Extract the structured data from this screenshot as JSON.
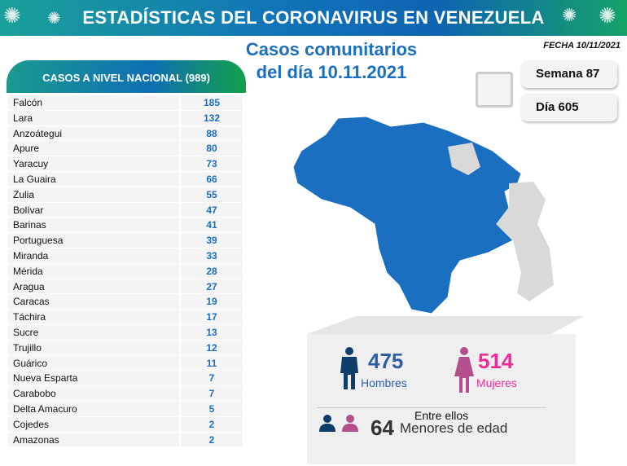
{
  "header": {
    "title": "ESTADÍSTICAS DEL CORONAVIRUS EN VENEZUELA",
    "fecha": "FECHA 10/11/2021"
  },
  "headline": {
    "line1": "Casos comunitarios",
    "line2": "del día 10.11.2021"
  },
  "table": {
    "title": "CASOS A NIVEL NACIONAL  (989)",
    "rows": [
      {
        "state": "Falcón",
        "cases": "185"
      },
      {
        "state": "Lara",
        "cases": "132"
      },
      {
        "state": "Anzoátegui",
        "cases": "88"
      },
      {
        "state": "Apure",
        "cases": "80"
      },
      {
        "state": "Yaracuy",
        "cases": "73"
      },
      {
        "state": "La Guaira",
        "cases": "66"
      },
      {
        "state": "Zulia",
        "cases": "55"
      },
      {
        "state": "Bolívar",
        "cases": "47"
      },
      {
        "state": "Barinas",
        "cases": "41"
      },
      {
        "state": "Portuguesa",
        "cases": "39"
      },
      {
        "state": "Miranda",
        "cases": "33"
      },
      {
        "state": "Mérida",
        "cases": "28"
      },
      {
        "state": "Aragua",
        "cases": "27"
      },
      {
        "state": "Caracas",
        "cases": "19"
      },
      {
        "state": "Táchira",
        "cases": "17"
      },
      {
        "state": "Sucre",
        "cases": "13"
      },
      {
        "state": "Trujillo",
        "cases": "12"
      },
      {
        "state": "Guárico",
        "cases": "11"
      },
      {
        "state": "Nueva Esparta",
        "cases": "7"
      },
      {
        "state": "Carabobo",
        "cases": "7"
      },
      {
        "state": "Delta Amacuro",
        "cases": "5"
      },
      {
        "state": "Cojedes",
        "cases": "2"
      },
      {
        "state": "Amazonas",
        "cases": "2"
      }
    ]
  },
  "info": {
    "semana": "Semana 87",
    "dia": "Día 605"
  },
  "stats": {
    "men": "475",
    "men_label": "Hombres",
    "women": "514",
    "women_label": "Mujeres",
    "between": "Entre ellos",
    "minors": "64",
    "minors_label": "Menores de edad"
  },
  "colors": {
    "blue": "#1a6fc0",
    "men": "#0e3d6b",
    "women": "#b24f8c",
    "women_text": "#ef2a9a",
    "map": "#1a6fc0",
    "map_grey": "#d9d9d9"
  }
}
